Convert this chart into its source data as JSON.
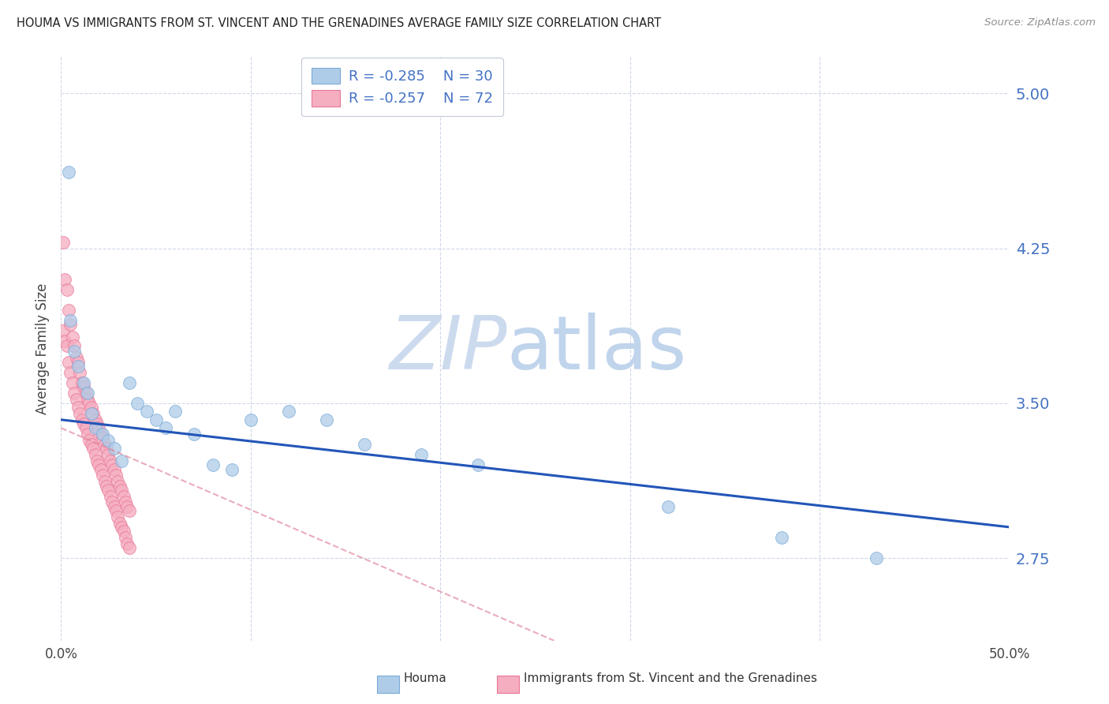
{
  "title": "HOUMA VS IMMIGRANTS FROM ST. VINCENT AND THE GRENADINES AVERAGE FAMILY SIZE CORRELATION CHART",
  "source": "Source: ZipAtlas.com",
  "ylabel": "Average Family Size",
  "xmin": 0.0,
  "xmax": 0.5,
  "ymin": 2.35,
  "ymax": 5.18,
  "yticks": [
    2.75,
    3.5,
    4.25,
    5.0
  ],
  "xticks": [
    0.0,
    0.1,
    0.2,
    0.3,
    0.4,
    0.5
  ],
  "xtick_labels": [
    "0.0%",
    "",
    "",
    "",
    "",
    "50.0%"
  ],
  "houma_R": -0.285,
  "houma_N": 30,
  "immigrants_R": -0.257,
  "immigrants_N": 72,
  "houma_color": "#aecce8",
  "immigrants_color": "#f5adc0",
  "houma_edge_color": "#7aaad8",
  "immigrants_edge_color": "#e87898",
  "regression_blue_color": "#2255b8",
  "regression_pink_color": "#e08098",
  "watermark_zip_color": "#ccdaee",
  "watermark_atlas_color": "#c0d4ec",
  "background_color": "#ffffff",
  "grid_color": "#d0d8e8",
  "title_color": "#222222",
  "yaxis_label_color": "#4472c4",
  "houma_x": [
    0.004,
    0.005,
    0.007,
    0.009,
    0.012,
    0.014,
    0.016,
    0.018,
    0.022,
    0.025,
    0.028,
    0.032,
    0.036,
    0.04,
    0.045,
    0.05,
    0.055,
    0.06,
    0.07,
    0.08,
    0.09,
    0.1,
    0.12,
    0.14,
    0.16,
    0.19,
    0.22,
    0.32,
    0.38,
    0.43
  ],
  "houma_y": [
    4.62,
    3.9,
    3.75,
    3.68,
    3.6,
    3.55,
    3.45,
    3.38,
    3.35,
    3.32,
    3.28,
    3.22,
    3.6,
    3.5,
    3.46,
    3.42,
    3.38,
    3.46,
    3.35,
    3.2,
    3.18,
    3.42,
    3.46,
    3.42,
    3.3,
    3.25,
    3.2,
    3.0,
    2.85,
    2.75
  ],
  "immigrants_x": [
    0.001,
    0.001,
    0.002,
    0.002,
    0.003,
    0.003,
    0.004,
    0.004,
    0.005,
    0.005,
    0.006,
    0.006,
    0.007,
    0.007,
    0.008,
    0.008,
    0.009,
    0.009,
    0.01,
    0.01,
    0.011,
    0.011,
    0.012,
    0.012,
    0.013,
    0.013,
    0.014,
    0.014,
    0.015,
    0.015,
    0.016,
    0.016,
    0.017,
    0.017,
    0.018,
    0.018,
    0.019,
    0.019,
    0.02,
    0.02,
    0.021,
    0.021,
    0.022,
    0.022,
    0.023,
    0.023,
    0.024,
    0.024,
    0.025,
    0.025,
    0.026,
    0.026,
    0.027,
    0.027,
    0.028,
    0.028,
    0.029,
    0.029,
    0.03,
    0.03,
    0.031,
    0.031,
    0.032,
    0.032,
    0.033,
    0.033,
    0.034,
    0.034,
    0.035,
    0.035,
    0.036,
    0.036
  ],
  "immigrants_y": [
    4.28,
    3.85,
    4.1,
    3.8,
    4.05,
    3.78,
    3.95,
    3.7,
    3.88,
    3.65,
    3.82,
    3.6,
    3.78,
    3.55,
    3.72,
    3.52,
    3.7,
    3.48,
    3.65,
    3.45,
    3.6,
    3.42,
    3.58,
    3.4,
    3.55,
    3.38,
    3.52,
    3.35,
    3.5,
    3.32,
    3.48,
    3.3,
    3.45,
    3.28,
    3.42,
    3.25,
    3.4,
    3.22,
    3.38,
    3.2,
    3.35,
    3.18,
    3.33,
    3.15,
    3.3,
    3.12,
    3.28,
    3.1,
    3.25,
    3.08,
    3.22,
    3.05,
    3.2,
    3.02,
    3.18,
    3.0,
    3.15,
    2.98,
    3.12,
    2.95,
    3.1,
    2.92,
    3.08,
    2.9,
    3.05,
    2.88,
    3.02,
    2.85,
    3.0,
    2.82,
    2.98,
    2.8
  ],
  "blue_line_x0": 0.0,
  "blue_line_x1": 0.5,
  "blue_line_y0": 3.42,
  "blue_line_y1": 2.9,
  "pink_line_x0": 0.0,
  "pink_line_x1": 0.26,
  "pink_line_y0": 3.38,
  "pink_line_y1": 2.35
}
